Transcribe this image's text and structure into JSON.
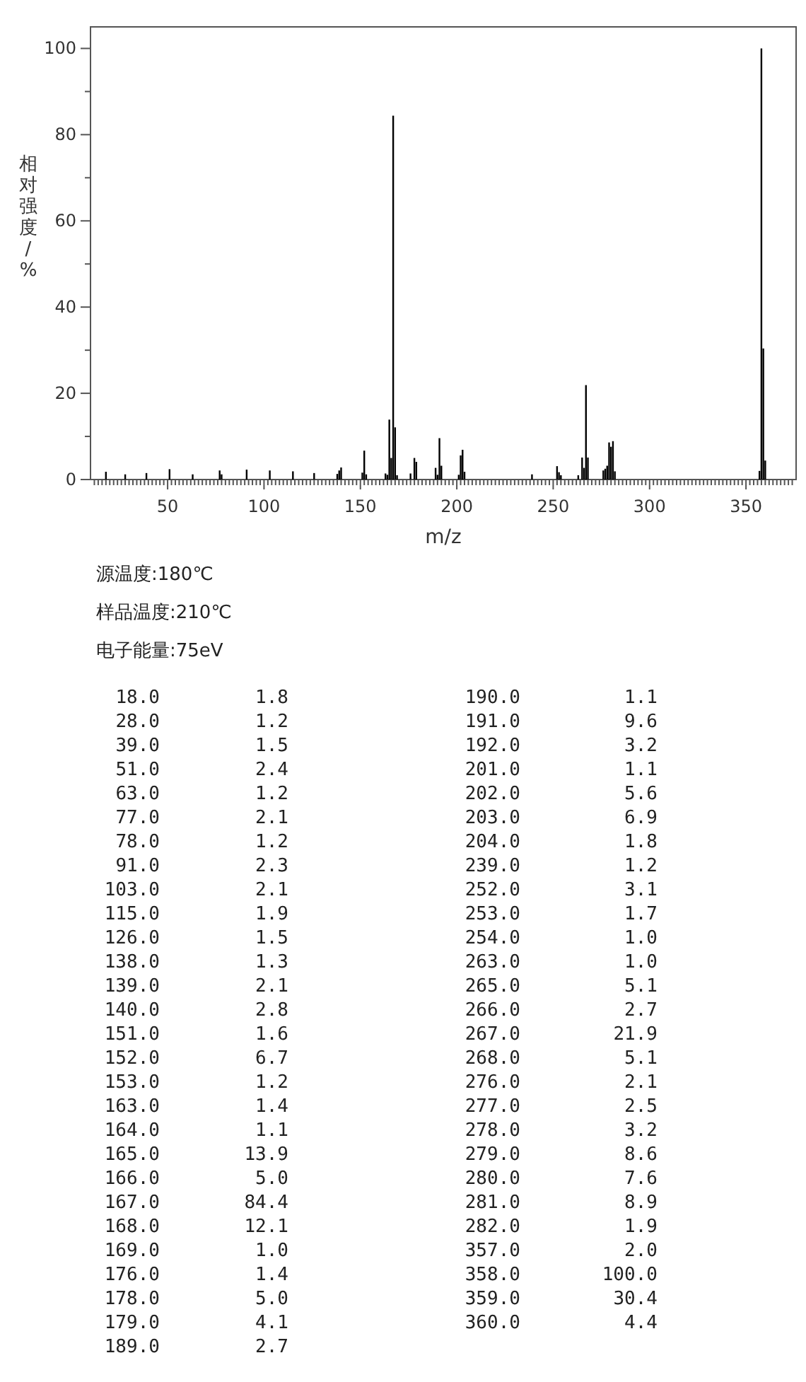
{
  "chart_data": [
    {
      "type": "bar",
      "xlabel": "m/z",
      "ylabel": "相对强度/%",
      "annotations": [
        "源温度:180℃",
        "样品温度:210℃",
        "电子能量:75eV"
      ],
      "x": [
        18,
        28,
        39,
        51,
        63,
        77,
        78,
        91,
        103,
        115,
        126,
        138,
        139,
        140,
        151,
        152,
        153,
        163,
        164,
        165,
        166,
        167,
        168,
        169,
        176,
        178,
        179,
        189,
        190,
        191,
        192,
        201,
        202,
        203,
        204,
        239,
        252,
        253,
        254,
        263,
        265,
        266,
        267,
        268,
        276,
        277,
        278,
        279,
        280,
        281,
        282,
        357,
        358,
        359,
        360
      ],
      "values": [
        1.8,
        1.2,
        1.5,
        2.4,
        1.2,
        2.1,
        1.2,
        2.3,
        2.1,
        1.9,
        1.5,
        1.3,
        2.1,
        2.8,
        1.6,
        6.7,
        1.2,
        1.4,
        1.1,
        13.9,
        5.0,
        84.4,
        12.1,
        1.0,
        1.4,
        5.0,
        4.1,
        2.7,
        1.1,
        9.6,
        3.2,
        1.1,
        5.6,
        6.9,
        1.8,
        1.2,
        3.1,
        1.7,
        1.0,
        1.0,
        5.1,
        2.7,
        21.9,
        5.1,
        2.1,
        2.5,
        3.2,
        8.6,
        7.6,
        8.9,
        1.9,
        2.0,
        100.0,
        30.4,
        4.4
      ],
      "color": "#000000",
      "xlim": [
        10,
        376
      ],
      "ylim": [
        0,
        105
      ],
      "xticks": [
        {
          "value": 12,
          "label": null
        },
        {
          "value": 14,
          "label": null
        },
        {
          "value": 16,
          "label": null
        },
        {
          "value": 18,
          "label": null
        },
        {
          "value": 20,
          "label": null
        },
        {
          "value": 22,
          "label": null
        },
        {
          "value": 24,
          "label": null
        },
        {
          "value": 26,
          "label": null
        },
        {
          "value": 28,
          "label": null
        },
        {
          "value": 30,
          "label": null
        },
        {
          "value": 32,
          "label": null
        },
        {
          "value": 34,
          "label": null
        },
        {
          "value": 36,
          "label": null
        },
        {
          "value": 38,
          "label": null
        },
        {
          "value": 40,
          "label": null
        },
        {
          "value": 42,
          "label": null
        },
        {
          "value": 44,
          "label": null
        },
        {
          "value": 46,
          "label": null
        },
        {
          "value": 48,
          "label": null
        },
        50,
        {
          "value": 52,
          "label": null
        },
        {
          "value": 54,
          "label": null
        },
        {
          "value": 56,
          "label": null
        },
        {
          "value": 58,
          "label": null
        },
        {
          "value": 60,
          "label": null
        },
        {
          "value": 62,
          "label": null
        },
        {
          "value": 64,
          "label": null
        },
        {
          "value": 66,
          "label": null
        },
        {
          "value": 68,
          "label": null
        },
        {
          "value": 70,
          "label": null
        },
        {
          "value": 72,
          "label": null
        },
        {
          "value": 74,
          "label": null
        },
        {
          "value": 76,
          "label": null
        },
        {
          "value": 78,
          "label": null
        },
        {
          "value": 80,
          "label": null
        },
        {
          "value": 82,
          "label": null
        },
        {
          "value": 84,
          "label": null
        },
        {
          "value": 86,
          "label": null
        },
        {
          "value": 88,
          "label": null
        },
        {
          "value": 90,
          "label": null
        },
        {
          "value": 92,
          "label": null
        },
        {
          "value": 94,
          "label": null
        },
        {
          "value": 96,
          "label": null
        },
        {
          "value": 98,
          "label": null
        },
        100,
        {
          "value": 102,
          "label": null
        },
        {
          "value": 104,
          "label": null
        },
        {
          "value": 106,
          "label": null
        },
        {
          "value": 108,
          "label": null
        },
        {
          "value": 110,
          "label": null
        },
        {
          "value": 112,
          "label": null
        },
        {
          "value": 114,
          "label": null
        },
        {
          "value": 116,
          "label": null
        },
        {
          "value": 118,
          "label": null
        },
        {
          "value": 120,
          "label": null
        },
        {
          "value": 122,
          "label": null
        },
        {
          "value": 124,
          "label": null
        },
        {
          "value": 126,
          "label": null
        },
        {
          "value": 128,
          "label": null
        },
        {
          "value": 130,
          "label": null
        },
        {
          "value": 132,
          "label": null
        },
        {
          "value": 134,
          "label": null
        },
        {
          "value": 136,
          "label": null
        },
        {
          "value": 138,
          "label": null
        },
        {
          "value": 140,
          "label": null
        },
        {
          "value": 142,
          "label": null
        },
        {
          "value": 144,
          "label": null
        },
        {
          "value": 146,
          "label": null
        },
        {
          "value": 148,
          "label": null
        },
        150,
        {
          "value": 152,
          "label": null
        },
        {
          "value": 154,
          "label": null
        },
        {
          "value": 156,
          "label": null
        },
        {
          "value": 158,
          "label": null
        },
        {
          "value": 160,
          "label": null
        },
        {
          "value": 162,
          "label": null
        },
        {
          "value": 164,
          "label": null
        },
        {
          "value": 166,
          "label": null
        },
        {
          "value": 168,
          "label": null
        },
        {
          "value": 170,
          "label": null
        },
        {
          "value": 172,
          "label": null
        },
        {
          "value": 174,
          "label": null
        },
        {
          "value": 176,
          "label": null
        },
        {
          "value": 178,
          "label": null
        },
        {
          "value": 180,
          "label": null
        },
        {
          "value": 182,
          "label": null
        },
        {
          "value": 184,
          "label": null
        },
        {
          "value": 186,
          "label": null
        },
        {
          "value": 188,
          "label": null
        },
        {
          "value": 190,
          "label": null
        },
        {
          "value": 192,
          "label": null
        },
        {
          "value": 194,
          "label": null
        },
        {
          "value": 196,
          "label": null
        },
        {
          "value": 198,
          "label": null
        },
        200,
        {
          "value": 202,
          "label": null
        },
        {
          "value": 204,
          "label": null
        },
        {
          "value": 206,
          "label": null
        },
        {
          "value": 208,
          "label": null
        },
        {
          "value": 210,
          "label": null
        },
        {
          "value": 212,
          "label": null
        },
        {
          "value": 214,
          "label": null
        },
        {
          "value": 216,
          "label": null
        },
        {
          "value": 218,
          "label": null
        },
        {
          "value": 220,
          "label": null
        },
        {
          "value": 222,
          "label": null
        },
        {
          "value": 224,
          "label": null
        },
        {
          "value": 226,
          "label": null
        },
        {
          "value": 228,
          "label": null
        },
        {
          "value": 230,
          "label": null
        },
        {
          "value": 232,
          "label": null
        },
        {
          "value": 234,
          "label": null
        },
        {
          "value": 236,
          "label": null
        },
        {
          "value": 238,
          "label": null
        },
        {
          "value": 240,
          "label": null
        },
        {
          "value": 242,
          "label": null
        },
        {
          "value": 244,
          "label": null
        },
        {
          "value": 246,
          "label": null
        },
        {
          "value": 248,
          "label": null
        },
        250,
        {
          "value": 252,
          "label": null
        },
        {
          "value": 254,
          "label": null
        },
        {
          "value": 256,
          "label": null
        },
        {
          "value": 258,
          "label": null
        },
        {
          "value": 260,
          "label": null
        },
        {
          "value": 262,
          "label": null
        },
        {
          "value": 264,
          "label": null
        },
        {
          "value": 266,
          "label": null
        },
        {
          "value": 268,
          "label": null
        },
        {
          "value": 270,
          "label": null
        },
        {
          "value": 272,
          "label": null
        },
        {
          "value": 274,
          "label": null
        },
        {
          "value": 276,
          "label": null
        },
        {
          "value": 278,
          "label": null
        },
        {
          "value": 280,
          "label": null
        },
        {
          "value": 282,
          "label": null
        },
        {
          "value": 284,
          "label": null
        },
        {
          "value": 286,
          "label": null
        },
        {
          "value": 288,
          "label": null
        },
        {
          "value": 290,
          "label": null
        },
        {
          "value": 292,
          "label": null
        },
        {
          "value": 294,
          "label": null
        },
        {
          "value": 296,
          "label": null
        },
        {
          "value": 298,
          "label": null
        },
        300,
        {
          "value": 302,
          "label": null
        },
        {
          "value": 304,
          "label": null
        },
        {
          "value": 306,
          "label": null
        },
        {
          "value": 308,
          "label": null
        },
        {
          "value": 310,
          "label": null
        },
        {
          "value": 312,
          "label": null
        },
        {
          "value": 314,
          "label": null
        },
        {
          "value": 316,
          "label": null
        },
        {
          "value": 318,
          "label": null
        },
        {
          "value": 320,
          "label": null
        },
        {
          "value": 322,
          "label": null
        },
        {
          "value": 324,
          "label": null
        },
        {
          "value": 326,
          "label": null
        },
        {
          "value": 328,
          "label": null
        },
        {
          "value": 330,
          "label": null
        },
        {
          "value": 332,
          "label": null
        },
        {
          "value": 334,
          "label": null
        },
        {
          "value": 336,
          "label": null
        },
        {
          "value": 338,
          "label": null
        },
        {
          "value": 340,
          "label": null
        },
        {
          "value": 342,
          "label": null
        },
        {
          "value": 344,
          "label": null
        },
        {
          "value": 346,
          "label": null
        },
        {
          "value": 348,
          "label": null
        },
        350,
        {
          "value": 352,
          "label": null
        },
        {
          "value": 354,
          "label": null
        },
        {
          "value": 356,
          "label": null
        },
        {
          "value": 358,
          "label": null
        },
        {
          "value": 360,
          "label": null
        },
        {
          "value": 362,
          "label": null
        },
        {
          "value": 364,
          "label": null
        },
        {
          "value": 366,
          "label": null
        },
        {
          "value": 368,
          "label": null
        },
        {
          "value": 370,
          "label": null
        },
        {
          "value": 372,
          "label": null
        },
        {
          "value": 374,
          "label": null
        }
      ],
      "yticks": [
        0,
        {
          "value": 10,
          "label": null
        },
        20,
        {
          "value": 30,
          "label": null
        },
        40,
        {
          "value": 50,
          "label": null
        },
        60,
        {
          "value": 70,
          "label": null
        },
        80,
        {
          "value": 90,
          "label": null
        },
        100
      ]
    },
    {
      "type": "other",
      "value_labels": [
        "1.8",
        "1.2",
        "1.5",
        "2.4",
        "1.2",
        "2.1",
        "1.2",
        "2.3",
        "2.1",
        "1.9",
        "1.5",
        "1.3",
        "2.1",
        "2.8",
        "1.6",
        "6.7",
        "1.2",
        "1.4",
        "1.1",
        "13.9",
        "5.0",
        "84.4",
        "12.1",
        "1.0",
        "1.4",
        "5.0",
        "4.1",
        "2.7",
        "1.1",
        "9.6",
        "3.2",
        "1.1",
        "5.6",
        "6.9",
        "1.8",
        "1.2",
        "3.1",
        "1.7",
        "1.0",
        "1.0",
        "5.1",
        "2.7",
        "21.9",
        "5.1",
        "2.1",
        "2.5",
        "3.2",
        "8.6",
        "7.6",
        "8.9",
        "1.9",
        "2.0",
        "100.0",
        "30.4",
        "4.4"
      ],
      "categories": [
        "18.0",
        "28.0",
        "39.0",
        "51.0",
        "63.0",
        "77.0",
        "78.0",
        "91.0",
        "103.0",
        "115.0",
        "126.0",
        "138.0",
        "139.0",
        "140.0",
        "151.0",
        "152.0",
        "153.0",
        "163.0",
        "164.0",
        "165.0",
        "166.0",
        "167.0",
        "168.0",
        "169.0",
        "176.0",
        "178.0",
        "179.0",
        "189.0",
        "190.0",
        "191.0",
        "192.0",
        "201.0",
        "202.0",
        "203.0",
        "204.0",
        "239.0",
        "252.0",
        "253.0",
        "254.0",
        "263.0",
        "265.0",
        "266.0",
        "267.0",
        "268.0",
        "276.0",
        "277.0",
        "278.0",
        "279.0",
        "280.0",
        "281.0",
        "282.0",
        "357.0",
        "358.0",
        "359.0",
        "360.0"
      ],
      "values": [
        1.8,
        1.2,
        1.5,
        2.4,
        1.2,
        2.1,
        1.2,
        2.3,
        2.1,
        1.9,
        1.5,
        1.3,
        2.1,
        2.8,
        1.6,
        6.7,
        1.2,
        1.4,
        1.1,
        13.9,
        5.0,
        84.4,
        12.1,
        1.0,
        1.4,
        5.0,
        4.1,
        2.7,
        1.1,
        9.6,
        3.2,
        1.1,
        5.6,
        6.9,
        1.8,
        1.2,
        3.1,
        1.7,
        1.0,
        1.0,
        5.1,
        2.7,
        21.9,
        5.1,
        2.1,
        2.5,
        3.2,
        8.6,
        7.6,
        8.9,
        1.9,
        2.0,
        100.0,
        30.4,
        4.4
      ]
    }
  ]
}
